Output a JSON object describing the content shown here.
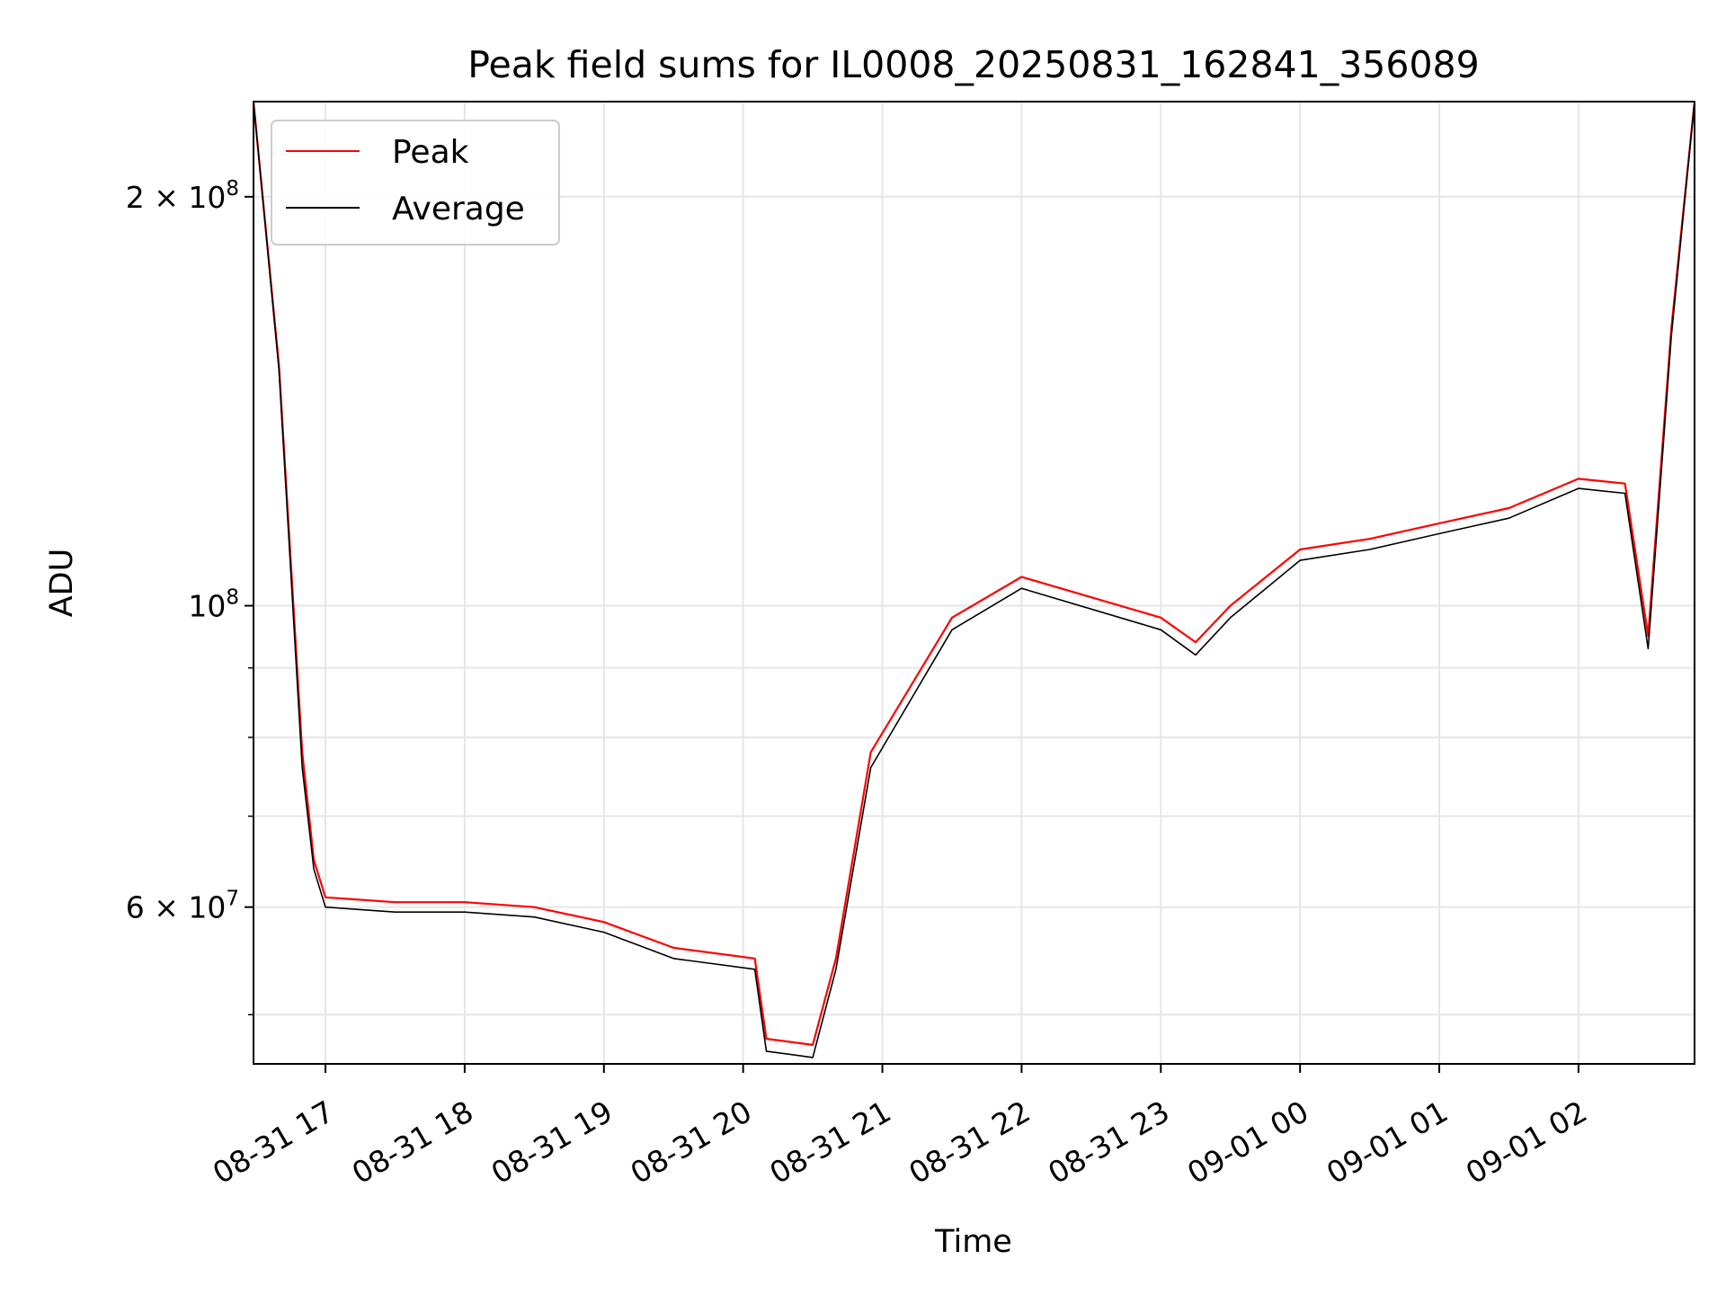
{
  "chart_data": {
    "type": "line",
    "title": "Peak field sums for IL0008_20250831_162841_356089",
    "xlabel": "Time",
    "ylabel": "ADU",
    "yscale": "log",
    "ylim": [
      46000000,
      235000000
    ],
    "xlim": [
      "2025-08-31 16:29",
      "2025-09-01 02:50"
    ],
    "grid": true,
    "legend_position": "top-left",
    "x_ticks": [
      {
        "t": "2025-08-31 17:00",
        "label": "08-31 17"
      },
      {
        "t": "2025-08-31 18:00",
        "label": "08-31 18"
      },
      {
        "t": "2025-08-31 19:00",
        "label": "08-31 19"
      },
      {
        "t": "2025-08-31 20:00",
        "label": "08-31 20"
      },
      {
        "t": "2025-08-31 21:00",
        "label": "08-31 21"
      },
      {
        "t": "2025-08-31 22:00",
        "label": "08-31 22"
      },
      {
        "t": "2025-08-31 23:00",
        "label": "08-31 23"
      },
      {
        "t": "2025-09-01 00:00",
        "label": "09-01 00"
      },
      {
        "t": "2025-09-01 01:00",
        "label": "09-01 01"
      },
      {
        "t": "2025-09-01 02:00",
        "label": "09-01 02"
      }
    ],
    "y_major_ticks": [
      {
        "value": 60000000,
        "mantissa": "6",
        "exponent": "7"
      },
      {
        "value": 100000000,
        "mantissa": "",
        "exponent": "8"
      },
      {
        "value": 200000000,
        "mantissa": "2",
        "exponent": "8"
      }
    ],
    "y_minor_ticks": [
      50000000,
      70000000,
      80000000,
      90000000
    ],
    "x_labels": [
      "2025-08-31 16:29",
      "2025-08-31 16:40",
      "2025-08-31 16:50",
      "2025-08-31 16:55",
      "2025-08-31 17:00",
      "2025-08-31 17:30",
      "2025-08-31 18:00",
      "2025-08-31 18:30",
      "2025-08-31 19:00",
      "2025-08-31 19:30",
      "2025-08-31 20:05",
      "2025-08-31 20:10",
      "2025-08-31 20:30",
      "2025-08-31 20:40",
      "2025-08-31 20:55",
      "2025-08-31 21:30",
      "2025-08-31 22:00",
      "2025-08-31 23:00",
      "2025-08-31 23:15",
      "2025-08-31 23:30",
      "2025-09-01 00:00",
      "2025-09-01 00:30",
      "2025-09-01 01:00",
      "2025-09-01 01:30",
      "2025-09-01 02:00",
      "2025-09-01 02:20",
      "2025-09-01 02:30",
      "2025-09-01 02:40",
      "2025-09-01 02:50"
    ],
    "series": [
      {
        "name": "Peak",
        "color": "#ff0000",
        "values": [
          235000000,
          150000000,
          78000000,
          65000000,
          61000000,
          60500000,
          60500000,
          60000000,
          58500000,
          56000000,
          55000000,
          48000000,
          47500000,
          55000000,
          78000000,
          98000000,
          105000000,
          98000000,
          94000000,
          100000000,
          110000000,
          112000000,
          115000000,
          118000000,
          124000000,
          123000000,
          95000000,
          160000000,
          235000000
        ]
      },
      {
        "name": "Average",
        "color": "#000000",
        "values": [
          235000000,
          149000000,
          76000000,
          64000000,
          60000000,
          59500000,
          59500000,
          59000000,
          57500000,
          55000000,
          54000000,
          47000000,
          46500000,
          54000000,
          76000000,
          96000000,
          103000000,
          96000000,
          92000000,
          98000000,
          108000000,
          110000000,
          113000000,
          116000000,
          122000000,
          121000000,
          93000000,
          158000000,
          235000000
        ]
      }
    ]
  }
}
